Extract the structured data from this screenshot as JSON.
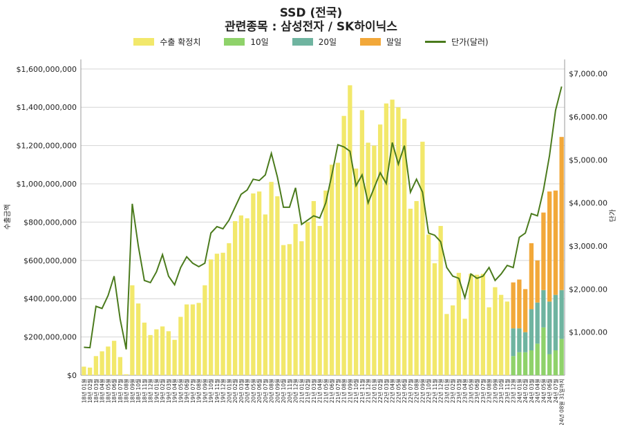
{
  "chart_data": {
    "type": "bar",
    "title": "SSD (전국)",
    "subtitle": "관련종목 : 삼성전자 / SK하이닉스",
    "ylabel_left": "수출금액",
    "ylabel_right": "단가",
    "ylim_left": [
      0,
      1650000000
    ],
    "ylim_right": [
      0,
      7330
    ],
    "left_ticks": [
      "$0",
      "$200,000,000",
      "$400,000,000",
      "$600,000,000",
      "$800,000,000",
      "$1,000,000,000",
      "$1,200,000,000",
      "$1,400,000,000",
      "$1,600,000,000"
    ],
    "right_ticks": [
      "$1,000.00",
      "$2,000.00",
      "$3,000.00",
      "$4,000.00",
      "$5,000.00",
      "$6,000.00",
      "$7,000.00"
    ],
    "legend": [
      {
        "label": "수출 확정치",
        "color": "#f2e86b"
      },
      {
        "label": "10일",
        "color": "#8fd26a"
      },
      {
        "label": "20일",
        "color": "#6fb4a0"
      },
      {
        "label": "말일",
        "color": "#f2a83a"
      },
      {
        "label": "단가(달러)",
        "color": "#4a7a1c"
      }
    ],
    "categories": [
      "18년 01월",
      "18년 02월",
      "18년 03월",
      "18년 04월",
      "18년 05월",
      "18년 06월",
      "18년 07월",
      "18년 08월",
      "18년 09월",
      "18년 10월",
      "18년 11월",
      "18년 12월",
      "19년 01월",
      "19년 02월",
      "19년 03월",
      "19년 04월",
      "19년 05월",
      "19년 06월",
      "19년 07월",
      "19년 08월",
      "19년 09월",
      "19년 10월",
      "19년 11월",
      "19년 12월",
      "20년 01월",
      "20년 02월",
      "20년 03월",
      "20년 04월",
      "20년 05월",
      "20년 06월",
      "20년 07월",
      "20년 08월",
      "20년 09월",
      "20년 10월",
      "20년 11월",
      "20년 12월",
      "21년 01월",
      "21년 02월",
      "21년 03월",
      "21년 04월",
      "21년 05월",
      "21년 06월",
      "21년 07월",
      "21년 08월",
      "21년 09월",
      "21년 10월",
      "21년 11월",
      "21년 12월",
      "22년 01월",
      "22년 02월",
      "22년 03월",
      "22년 04월",
      "22년 05월",
      "22년 06월",
      "22년 07월",
      "22년 08월",
      "22년 09월",
      "22년 10월",
      "22년 11월",
      "22년 12월",
      "23년 01월",
      "23년 02월",
      "23년 03월",
      "23년 04월",
      "23년 05월",
      "23년 06월",
      "23년 07월",
      "23년 08월",
      "23년 09월",
      "23년 10월",
      "23년 11월",
      "23년 12월",
      "24년 01월",
      "24년 02월",
      "24년 03월",
      "24년 04월",
      "24년 05월",
      "24년 06월",
      "24년 07월",
      "24년 08월 31일까지"
    ],
    "series": [
      {
        "name": "수출 확정치",
        "values": [
          45000000,
          40000000,
          100000000,
          125000000,
          150000000,
          180000000,
          95000000,
          5000000,
          470000000,
          375000000,
          275000000,
          210000000,
          240000000,
          255000000,
          230000000,
          185000000,
          305000000,
          370000000,
          370000000,
          378000000,
          470000000,
          605000000,
          635000000,
          640000000,
          690000000,
          805000000,
          835000000,
          820000000,
          950000000,
          960000000,
          840000000,
          1010000000,
          935000000,
          680000000,
          685000000,
          790000000,
          700000000,
          800000000,
          910000000,
          780000000,
          965000000,
          1100000000,
          1110000000,
          1355000000,
          1515000000,
          1080000000,
          1385000000,
          1215000000,
          1200000000,
          1310000000,
          1420000000,
          1440000000,
          1400000000,
          1340000000,
          870000000,
          910000000,
          1220000000,
          735000000,
          585000000,
          780000000,
          320000000,
          365000000,
          535000000,
          295000000,
          530000000,
          525000000,
          530000000,
          355000000,
          460000000,
          420000000,
          385000000,
          0,
          0,
          0,
          0,
          0,
          0,
          0,
          0,
          0
        ]
      },
      {
        "name": "10일",
        "values": [
          0,
          0,
          0,
          0,
          0,
          0,
          0,
          0,
          0,
          0,
          0,
          0,
          0,
          0,
          0,
          0,
          0,
          0,
          0,
          0,
          0,
          0,
          0,
          0,
          0,
          0,
          0,
          0,
          0,
          0,
          0,
          0,
          0,
          0,
          0,
          0,
          0,
          0,
          0,
          0,
          0,
          0,
          0,
          0,
          0,
          0,
          0,
          0,
          0,
          0,
          0,
          0,
          0,
          0,
          0,
          0,
          0,
          0,
          0,
          0,
          0,
          0,
          0,
          0,
          0,
          0,
          0,
          0,
          0,
          0,
          0,
          100000000,
          120000000,
          120000000,
          130000000,
          165000000,
          250000000,
          110000000,
          130000000,
          190000000
        ]
      },
      {
        "name": "20일",
        "values": [
          0,
          0,
          0,
          0,
          0,
          0,
          0,
          0,
          0,
          0,
          0,
          0,
          0,
          0,
          0,
          0,
          0,
          0,
          0,
          0,
          0,
          0,
          0,
          0,
          0,
          0,
          0,
          0,
          0,
          0,
          0,
          0,
          0,
          0,
          0,
          0,
          0,
          0,
          0,
          0,
          0,
          0,
          0,
          0,
          0,
          0,
          0,
          0,
          0,
          0,
          0,
          0,
          0,
          0,
          0,
          0,
          0,
          0,
          0,
          0,
          0,
          0,
          0,
          0,
          0,
          0,
          0,
          0,
          0,
          0,
          0,
          145000000,
          125000000,
          105000000,
          215000000,
          215000000,
          195000000,
          275000000,
          290000000,
          255000000
        ]
      },
      {
        "name": "말일",
        "values": [
          0,
          0,
          0,
          0,
          0,
          0,
          0,
          0,
          0,
          0,
          0,
          0,
          0,
          0,
          0,
          0,
          0,
          0,
          0,
          0,
          0,
          0,
          0,
          0,
          0,
          0,
          0,
          0,
          0,
          0,
          0,
          0,
          0,
          0,
          0,
          0,
          0,
          0,
          0,
          0,
          0,
          0,
          0,
          0,
          0,
          0,
          0,
          0,
          0,
          0,
          0,
          0,
          0,
          0,
          0,
          0,
          0,
          0,
          0,
          0,
          0,
          0,
          0,
          0,
          0,
          0,
          0,
          0,
          0,
          0,
          0,
          240000000,
          255000000,
          225000000,
          345000000,
          220000000,
          405000000,
          575000000,
          545000000,
          800000000
        ]
      }
    ],
    "line": {
      "name": "단가(달러)",
      "values": [
        650,
        640,
        1600,
        1550,
        1850,
        2300,
        1300,
        600,
        3980,
        3000,
        2200,
        2150,
        2400,
        2800,
        2300,
        2100,
        2500,
        2750,
        2600,
        2520,
        2600,
        3300,
        3450,
        3400,
        3600,
        3900,
        4200,
        4300,
        4550,
        4520,
        4650,
        5150,
        4600,
        3900,
        3900,
        4350,
        3500,
        3600,
        3700,
        3650,
        4000,
        4650,
        5350,
        5300,
        5200,
        4400,
        4650,
        4000,
        4350,
        4700,
        4450,
        5400,
        4900,
        5330,
        4250,
        4550,
        4250,
        3300,
        3250,
        3100,
        2500,
        2300,
        2250,
        1800,
        2350,
        2250,
        2300,
        2500,
        2200,
        2350,
        2550,
        2500,
        3200,
        3300,
        3750,
        3700,
        4300,
        5100,
        6150,
        6700
      ]
    }
  }
}
